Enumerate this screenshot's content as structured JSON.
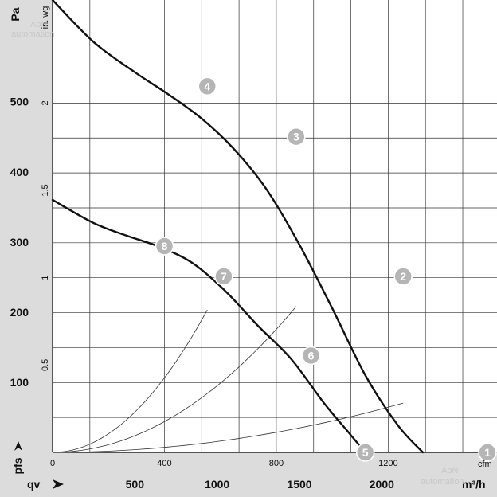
{
  "chart_data": {
    "type": "line",
    "x_primary": {
      "unit": "m³/h",
      "name": "qv",
      "ticks": [
        500,
        1000,
        1500,
        2000
      ],
      "range": [
        0,
        2700
      ]
    },
    "x_secondary": {
      "unit": "cfm",
      "ticks": [
        0,
        400,
        800,
        1200
      ],
      "range": [
        0,
        1589
      ]
    },
    "y_primary": {
      "unit": "Pa",
      "name": "pfs",
      "ticks": [
        100,
        200,
        300,
        400,
        500
      ],
      "range": [
        0,
        645
      ]
    },
    "y_secondary": {
      "unit": "in. wg",
      "ticks": [
        "0.5",
        "1",
        "1.5",
        "2"
      ],
      "tick_values": [
        0.5,
        1,
        1.5,
        2
      ],
      "range": [
        0,
        2.59
      ]
    },
    "grid": true,
    "fan_curves": [
      {
        "points": [
          [
            0,
            645
          ],
          [
            250,
            585
          ],
          [
            500,
            542
          ],
          [
            700,
            511
          ],
          [
            900,
            477
          ],
          [
            1100,
            433
          ],
          [
            1300,
            375
          ],
          [
            1500,
            296
          ],
          [
            1700,
            205
          ],
          [
            1900,
            110
          ],
          [
            2100,
            38
          ],
          [
            2250,
            0
          ]
        ]
      },
      {
        "points": [
          [
            0,
            360
          ],
          [
            250,
            327
          ],
          [
            450,
            309
          ],
          [
            650,
            293
          ],
          [
            850,
            270
          ],
          [
            1050,
            230
          ],
          [
            1250,
            180
          ],
          [
            1450,
            133
          ],
          [
            1650,
            70
          ],
          [
            1800,
            28
          ],
          [
            1900,
            0
          ]
        ]
      }
    ],
    "system_curves": [
      {
        "k": 1.55e-05,
        "x_end": 2130
      },
      {
        "k": 9.5e-05,
        "x_end": 1480
      },
      {
        "k": 0.00023,
        "x_end": 940
      }
    ],
    "operating_points": [
      {
        "label": "1",
        "x": 2700,
        "y": 0
      },
      {
        "label": "2",
        "x": 2130,
        "y": 251
      },
      {
        "label": "3",
        "x": 1480,
        "y": 450
      },
      {
        "label": "4",
        "x": 940,
        "y": 522
      },
      {
        "label": "5",
        "x": 1900,
        "y": 0
      },
      {
        "label": "6",
        "x": 1570,
        "y": 138
      },
      {
        "label": "7",
        "x": 1040,
        "y": 251
      },
      {
        "label": "8",
        "x": 680,
        "y": 294
      }
    ]
  },
  "watermarks": [
    "AbN",
    "automation",
    "AbN",
    "automation"
  ],
  "colors": {
    "background": "#dcdcdc",
    "plot": "#ffffff",
    "fan_curve": "#111111",
    "system_curve": "#333333",
    "point_marker": "#b5b5b5"
  }
}
